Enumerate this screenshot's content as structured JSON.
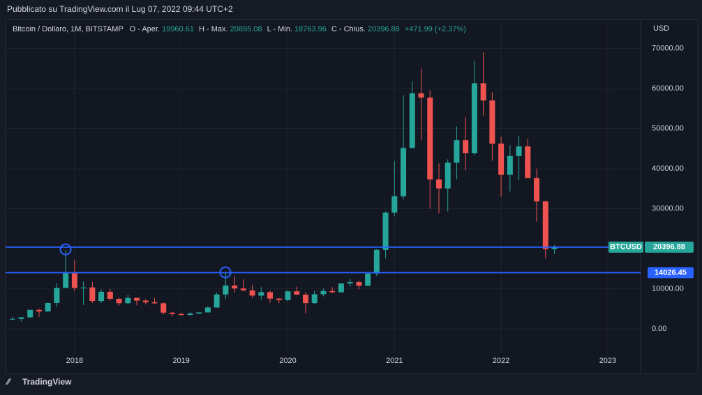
{
  "header": "Pubblicato su TradingView.com il Lug 07, 2022 09:44 UTC+2",
  "footer": "TradingView",
  "chart_data": {
    "type": "candlestick",
    "legend": {
      "symbol": "Bitcoin / Dollaro, 1M, BITSTAMP",
      "open": "O - Aper.",
      "high": "H - Max.",
      "low": "L - Min.",
      "close": "C - Chius.",
      "change": "+471.99 (+2.37%)"
    },
    "y_axis_label": "USD",
    "up_color": "#26a69a",
    "down_color": "#ef5350",
    "x": [
      2017.4167,
      2017.5,
      2017.5833,
      2017.6667,
      2017.75,
      2017.8333,
      2017.9167,
      2018,
      2018.0833,
      2018.1667,
      2018.25,
      2018.3333,
      2018.4167,
      2018.5,
      2018.5833,
      2018.6667,
      2018.75,
      2018.8333,
      2018.9167,
      2019,
      2019.0833,
      2019.1667,
      2019.25,
      2019.3333,
      2019.4167,
      2019.5,
      2019.5833,
      2019.6667,
      2019.75,
      2019.8333,
      2019.9167,
      2020,
      2020.0833,
      2020.1667,
      2020.25,
      2020.3333,
      2020.4167,
      2020.5,
      2020.5833,
      2020.6667,
      2020.75,
      2020.8333,
      2020.9167,
      2021,
      2021.0833,
      2021.1667,
      2021.25,
      2021.3333,
      2021.4167,
      2021.5,
      2021.5833,
      2021.6667,
      2021.75,
      2021.8333,
      2021.9167,
      2022,
      2022.0833,
      2022.1667,
      2022.25,
      2022.3333,
      2022.4167,
      2022.5
    ],
    "open": [
      2400,
      2480,
      2875,
      4735,
      4340,
      6450,
      10230,
      13860,
      10220,
      10330,
      6930,
      9240,
      7490,
      6390,
      7730,
      7030,
      6630,
      6370,
      4040,
      3690,
      3440,
      3820,
      4100,
      5320,
      8570,
      10820,
      10080,
      9600,
      8290,
      9150,
      7540,
      7190,
      9350,
      8540,
      6410,
      8630,
      9450,
      9140,
      11340,
      11650,
      10780,
      13790,
      19700,
      28990,
      33110,
      45160,
      58780,
      57720,
      37300,
      35040,
      41460,
      47100,
      43820,
      61320,
      57000,
      46210,
      38480,
      43160,
      45530,
      37640,
      31800,
      19960.61
    ],
    "high": [
      2980,
      2920,
      4770,
      5000,
      6470,
      11400,
      19666,
      17170,
      11790,
      11700,
      9770,
      9990,
      7770,
      8490,
      7760,
      7410,
      7680,
      6590,
      4240,
      4080,
      4210,
      4130,
      5630,
      9080,
      13880,
      13200,
      12330,
      10950,
      10370,
      9510,
      7750,
      9580,
      10500,
      9180,
      9470,
      10070,
      10380,
      11440,
      12470,
      12070,
      14100,
      19890,
      29300,
      41950,
      58330,
      61780,
      64900,
      59600,
      41330,
      42320,
      50480,
      52920,
      66930,
      69000,
      59050,
      47990,
      45850,
      48240,
      47440,
      40000,
      31980,
      20895.08
    ],
    "low": [
      2100,
      1830,
      2670,
      2980,
      4110,
      5520,
      10700,
      9400,
      5920,
      6450,
      6430,
      7030,
      5750,
      6070,
      5880,
      6110,
      6180,
      3560,
      3120,
      3350,
      3400,
      3700,
      4070,
      5320,
      7450,
      9070,
      9320,
      7710,
      7300,
      6520,
      6430,
      6860,
      8450,
      3860,
      6150,
      8100,
      8910,
      8990,
      10530,
      9820,
      10550,
      13210,
      17570,
      28150,
      32300,
      44950,
      47040,
      30000,
      28800,
      29300,
      37330,
      39600,
      43290,
      53260,
      41970,
      32950,
      34300,
      37150,
      37700,
      26700,
      17600,
      18763.96
    ],
    "close": [
      2480,
      2875,
      4735,
      4340,
      6450,
      10230,
      13860,
      10220,
      10330,
      6930,
      9240,
      7490,
      6390,
      7730,
      7030,
      6630,
      6370,
      4040,
      3690,
      3440,
      3820,
      4100,
      5320,
      8570,
      10820,
      10080,
      9600,
      8290,
      9150,
      7540,
      7190,
      9350,
      8540,
      6410,
      8630,
      9450,
      9140,
      11340,
      11650,
      10780,
      13790,
      19700,
      28990,
      33110,
      45160,
      58780,
      57720,
      37300,
      35040,
      41460,
      47100,
      43820,
      61320,
      57000,
      46210,
      38480,
      43160,
      45530,
      37640,
      31800,
      19930,
      20396.88
    ],
    "price_line": {
      "name": "BTCUSD",
      "color": "#2962ff",
      "label_color": "#26a69a"
    },
    "hlines": [
      {
        "value": 14026.45,
        "color": "#2962ff"
      }
    ],
    "xlim": [
      2017.366,
      2023.308
    ],
    "ylim": [
      -5739,
      76870
    ],
    "xticks": [
      2018,
      2019,
      2020,
      2021,
      2022,
      2023
    ],
    "yticks": [
      {
        "value": 0,
        "label": "0.00"
      },
      {
        "value": 10000,
        "label": "10000.00"
      },
      {
        "value": 30000,
        "label": "30000.00"
      },
      {
        "value": 40000,
        "label": "40000.00"
      },
      {
        "value": 50000,
        "label": "50000.00"
      },
      {
        "value": 60000,
        "label": "60000.00"
      },
      {
        "value": 70000,
        "label": "70000.00"
      }
    ],
    "grid": true
  }
}
